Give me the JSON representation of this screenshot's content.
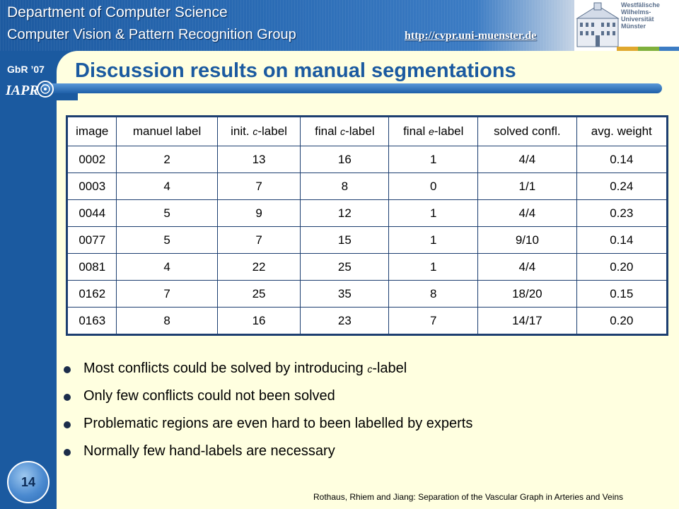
{
  "header": {
    "department": "Department of Computer Science",
    "group": "Computer Vision & Pattern Recognition Group",
    "url": "http://cvpr.uni-muenster.de",
    "university_lines": [
      "Westfälische",
      "Wilhelms-Universität",
      "Münster"
    ]
  },
  "sidebar": {
    "event": "GbR ’07",
    "logo": "IAPR",
    "slide_number": "14"
  },
  "slide": {
    "title": "Discussion results on manual segmentations"
  },
  "table": {
    "headers": [
      {
        "text": "image"
      },
      {
        "text": "manuel label"
      },
      {
        "prefix": "init. ",
        "symbol": "c",
        "suffix": "-label"
      },
      {
        "prefix": "final ",
        "symbol": "c",
        "suffix": "-label"
      },
      {
        "prefix": "final ",
        "symbol": "e",
        "suffix": "-label"
      },
      {
        "text": "solved confl."
      },
      {
        "text": "avg. weight"
      }
    ],
    "rows": [
      [
        "0002",
        "2",
        "13",
        "16",
        "1",
        "4/4",
        "0.14"
      ],
      [
        "0003",
        "4",
        "7",
        "8",
        "0",
        "1/1",
        "0.24"
      ],
      [
        "0044",
        "5",
        "9",
        "12",
        "1",
        "4/4",
        "0.23"
      ],
      [
        "0077",
        "5",
        "7",
        "15",
        "1",
        "9/10",
        "0.14"
      ],
      [
        "0081",
        "4",
        "22",
        "25",
        "1",
        "4/4",
        "0.20"
      ],
      [
        "0162",
        "7",
        "25",
        "35",
        "8",
        "18/20",
        "0.15"
      ],
      [
        "0163",
        "8",
        "16",
        "23",
        "7",
        "14/17",
        "0.20"
      ]
    ]
  },
  "bullets": [
    {
      "text_before": "Most conflicts could be solved by introducing ",
      "symbol": "c",
      "text_after": "-label"
    },
    {
      "text_before": "Only few conflicts could not been solved"
    },
    {
      "text_before": "Problematic regions are even hard to been labelled by experts"
    },
    {
      "text_before": "Normally few hand-labels are necessary"
    }
  ],
  "footer": {
    "citation": "Rothaus, Rhiem and Jiang: Separation of the Vascular Graph in Arteries and Veins"
  },
  "colors": {
    "title_blue": "#1b5aa0",
    "background": "#ffffe0",
    "table_border": "#1c3e70"
  }
}
